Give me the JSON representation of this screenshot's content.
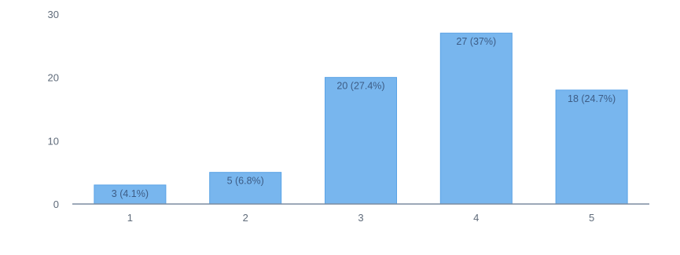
{
  "colors": {
    "bar": "#78b6ee",
    "bar_border": "#5aa3e6",
    "axis": "#7b8ca0",
    "tick_text": "#5f6b7a",
    "label_text": "#3d5c85"
  },
  "chart_data": {
    "type": "bar",
    "categories": [
      "1",
      "2",
      "3",
      "4",
      "5"
    ],
    "values": [
      3,
      5,
      20,
      27,
      18
    ],
    "data_labels": [
      "3 (4.1%)",
      "5 (6.8%)",
      "20 (27.4%)",
      "27 (37%)",
      "18 (24.7%)"
    ],
    "ylim": [
      0,
      30
    ],
    "yticks": [
      0,
      10,
      20,
      30
    ],
    "ytick_labels": [
      "0",
      "10",
      "20",
      "30"
    ],
    "title": "",
    "xlabel": "",
    "ylabel": "",
    "grid": false,
    "legend": "none"
  }
}
